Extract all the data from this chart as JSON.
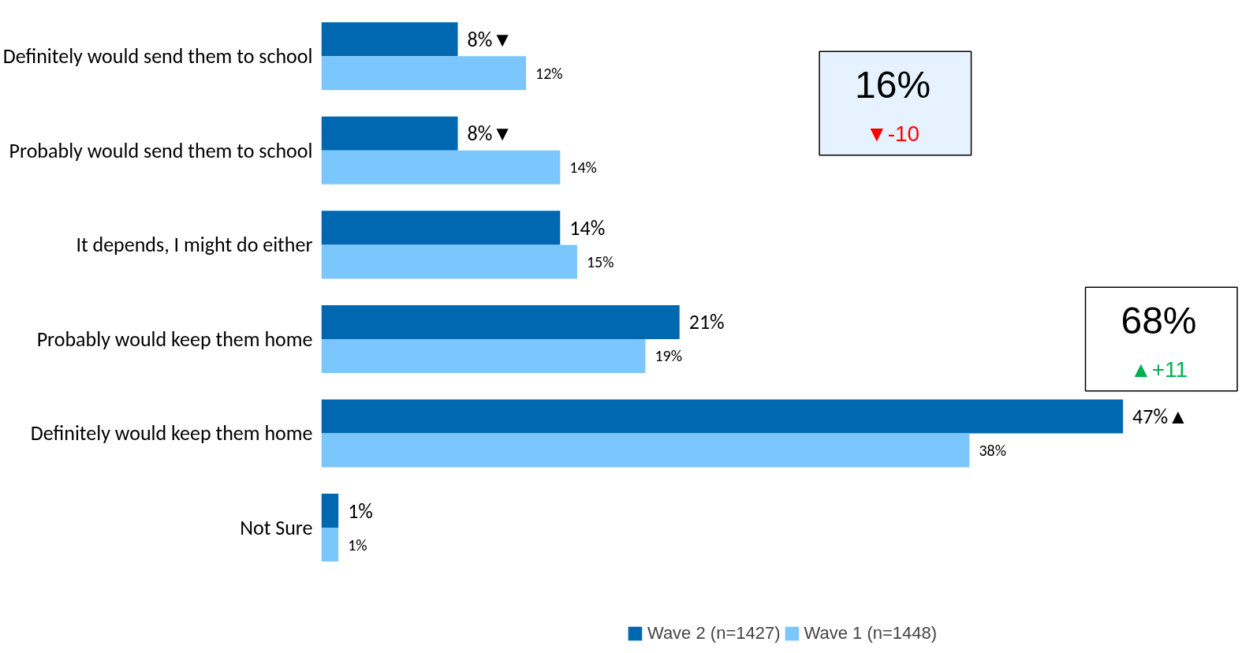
{
  "chart_data": {
    "type": "bar",
    "orientation": "horizontal",
    "categories": [
      "Definitely would send them to school",
      "Probably would send them to school",
      "It depends, I might do either",
      "Probably would keep them home",
      "Definitely would keep them home",
      "Not Sure"
    ],
    "series": [
      {
        "name": "Wave 2 (n=1427)",
        "color": "#0068b1",
        "values": [
          8,
          8,
          14,
          21,
          47,
          1
        ],
        "value_labels": [
          "8%▼",
          "8%▼",
          "14%",
          "21%",
          "47%▲",
          "1%"
        ]
      },
      {
        "name": "Wave 1 (n=1448)",
        "color": "#7ac6fd",
        "values": [
          12,
          14,
          15,
          19,
          38,
          1
        ],
        "value_labels": [
          "12%",
          "14%",
          "15%",
          "19%",
          "38%",
          "1%"
        ]
      }
    ],
    "xlim": [
      0,
      54
    ],
    "tick_labels": "y",
    "grid": false,
    "legend": "bottom",
    "annotations": [
      "16%",
      "▼-10",
      "68%",
      "▲+11"
    ]
  }
}
